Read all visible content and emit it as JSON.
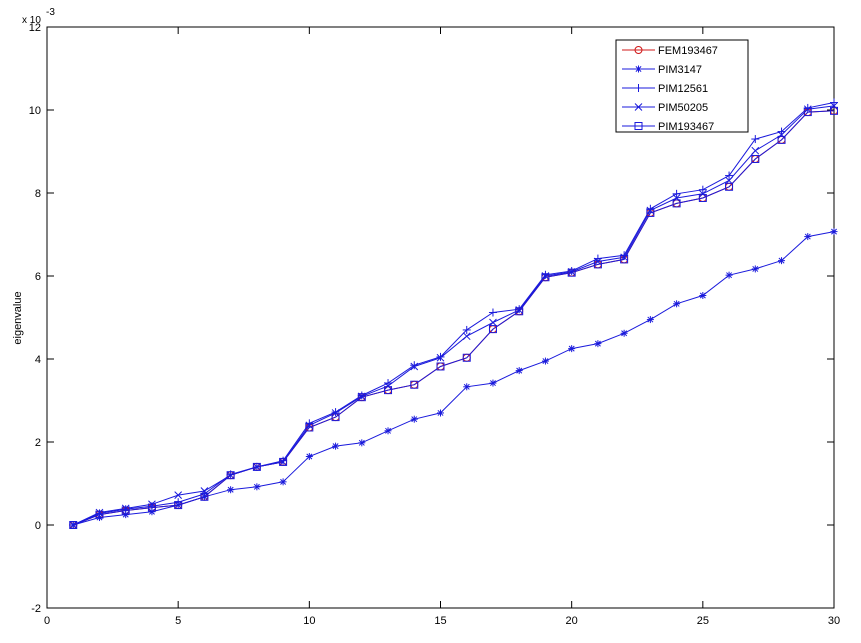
{
  "chart_data": {
    "type": "line",
    "title": "",
    "xlabel": "",
    "ylabel": "eigenvalue",
    "y_exponent_base": "x 10",
    "y_exponent_power": "-3",
    "xlim": [
      0,
      30
    ],
    "ylim": [
      -2,
      12
    ],
    "xticks": [
      0,
      5,
      10,
      15,
      20,
      25,
      30
    ],
    "yticks": [
      -2,
      0,
      2,
      4,
      6,
      8,
      10,
      12
    ],
    "grid": false,
    "legend_position": "top-right",
    "x": [
      1,
      2,
      3,
      4,
      5,
      6,
      7,
      8,
      9,
      10,
      11,
      12,
      13,
      14,
      15,
      16,
      17,
      18,
      19,
      20,
      21,
      22,
      23,
      24,
      25,
      26,
      27,
      28,
      29,
      30
    ],
    "series": [
      {
        "name": "FEM193467",
        "color": "#d01818",
        "marker": "circle",
        "values": [
          0.0,
          0.25,
          0.35,
          0.42,
          0.48,
          0.68,
          1.2,
          1.4,
          1.52,
          2.35,
          2.6,
          3.08,
          3.25,
          3.38,
          3.82,
          4.03,
          4.72,
          5.15,
          5.97,
          6.08,
          6.28,
          6.4,
          7.52,
          7.75,
          7.88,
          8.15,
          8.82,
          9.28,
          9.95,
          9.98
        ]
      },
      {
        "name": "PIM3147",
        "color": "#1a1adc",
        "marker": "asterisk",
        "values": [
          0.0,
          0.18,
          0.25,
          0.32,
          0.48,
          0.68,
          0.85,
          0.92,
          1.04,
          1.65,
          1.9,
          1.98,
          2.27,
          2.55,
          2.7,
          3.33,
          3.42,
          3.72,
          3.95,
          4.25,
          4.37,
          4.62,
          4.95,
          5.33,
          5.53,
          6.02,
          6.17,
          6.37,
          6.95,
          7.07
        ]
      },
      {
        "name": "PIM12561",
        "color": "#1a1adc",
        "marker": "plus",
        "values": [
          0.0,
          0.28,
          0.38,
          0.45,
          0.55,
          0.75,
          1.22,
          1.4,
          1.55,
          2.45,
          2.72,
          3.12,
          3.42,
          3.85,
          4.05,
          4.7,
          5.12,
          5.2,
          6.03,
          6.12,
          6.42,
          6.5,
          7.62,
          7.98,
          8.08,
          8.42,
          9.3,
          9.48,
          10.05,
          10.18
        ]
      },
      {
        "name": "PIM50205",
        "color": "#1a1adc",
        "marker": "cross",
        "values": [
          0.0,
          0.3,
          0.4,
          0.5,
          0.72,
          0.82,
          1.2,
          1.4,
          1.52,
          2.4,
          2.7,
          3.1,
          3.35,
          3.82,
          4.03,
          4.55,
          4.88,
          5.18,
          6.0,
          6.1,
          6.35,
          6.45,
          7.58,
          7.88,
          7.98,
          8.3,
          9.02,
          9.4,
          10.02,
          10.1
        ]
      },
      {
        "name": "PIM193467",
        "color": "#1a1adc",
        "marker": "square",
        "values": [
          0.0,
          0.25,
          0.35,
          0.42,
          0.48,
          0.68,
          1.2,
          1.4,
          1.52,
          2.35,
          2.6,
          3.08,
          3.25,
          3.38,
          3.82,
          4.03,
          4.72,
          5.15,
          5.97,
          6.08,
          6.28,
          6.4,
          7.52,
          7.75,
          7.88,
          8.15,
          8.82,
          9.28,
          9.95,
          9.98
        ]
      }
    ]
  }
}
